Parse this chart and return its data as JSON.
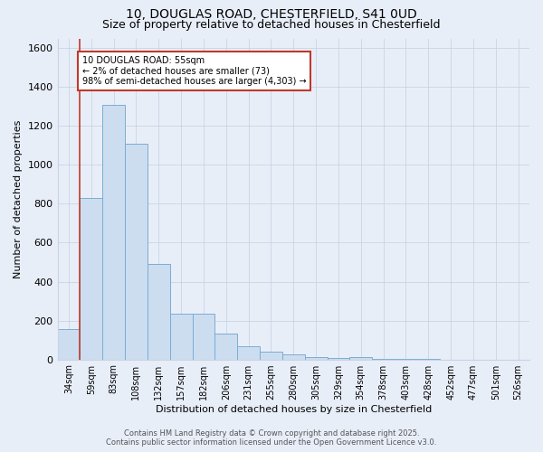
{
  "title_line1": "10, DOUGLAS ROAD, CHESTERFIELD, S41 0UD",
  "title_line2": "Size of property relative to detached houses in Chesterfield",
  "xlabel": "Distribution of detached houses by size in Chesterfield",
  "ylabel": "Number of detached properties",
  "bar_labels": [
    "34sqm",
    "59sqm",
    "83sqm",
    "108sqm",
    "132sqm",
    "157sqm",
    "182sqm",
    "206sqm",
    "231sqm",
    "255sqm",
    "280sqm",
    "305sqm",
    "329sqm",
    "354sqm",
    "378sqm",
    "403sqm",
    "428sqm",
    "452sqm",
    "477sqm",
    "501sqm",
    "526sqm"
  ],
  "bar_values": [
    155,
    830,
    1310,
    1110,
    490,
    235,
    235,
    135,
    70,
    42,
    25,
    13,
    8,
    13,
    3,
    3,
    1,
    0,
    0,
    0,
    0
  ],
  "bar_color": "#ccddf0",
  "bar_edge_color": "#7badd4",
  "highlight_color": "#c0392b",
  "annotation_text": "10 DOUGLAS ROAD: 55sqm\n← 2% of detached houses are smaller (73)\n98% of semi-detached houses are larger (4,303) →",
  "annotation_box_color": "#ffffff",
  "annotation_box_edge": "#c0392b",
  "grid_color": "#c8d4e4",
  "background_color": "#e8eef8",
  "plot_bg_color": "#e8eef8",
  "ylim": [
    0,
    1650
  ],
  "yticks": [
    0,
    200,
    400,
    600,
    800,
    1000,
    1200,
    1400,
    1600
  ],
  "footer_line1": "Contains HM Land Registry data © Crown copyright and database right 2025.",
  "footer_line2": "Contains public sector information licensed under the Open Government Licence v3.0.",
  "title1_fontsize": 10,
  "title2_fontsize": 9,
  "xlabel_fontsize": 8,
  "ylabel_fontsize": 8,
  "xtick_fontsize": 7,
  "ytick_fontsize": 8,
  "annotation_fontsize": 7,
  "footer_fontsize": 6
}
